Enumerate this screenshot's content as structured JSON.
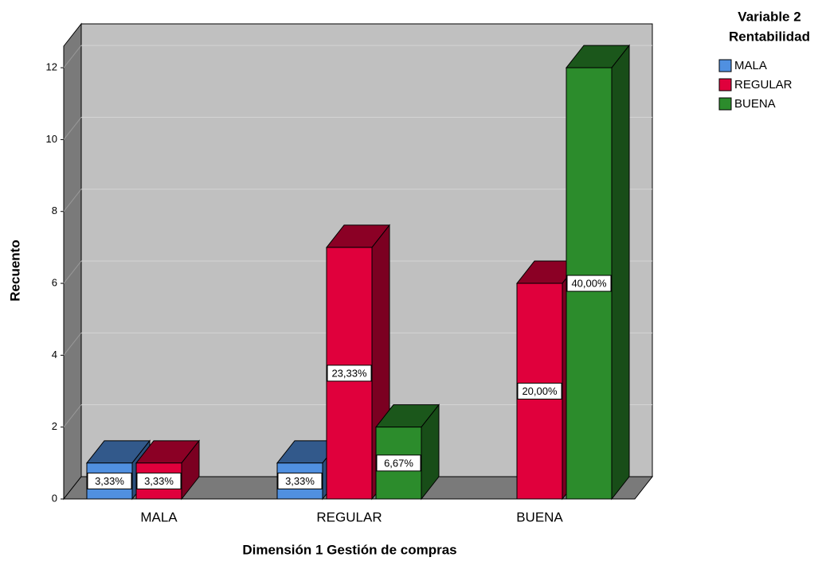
{
  "chart_data": {
    "type": "bar3d",
    "xlabel": "Dimensión 1 Gestión de compras",
    "ylabel": "Recuento",
    "categories": [
      "MALA",
      "REGULAR",
      "BUENA"
    ],
    "legend_title": [
      "Variable 2",
      "Rentabilidad"
    ],
    "legend": "right",
    "grid": true,
    "series": [
      {
        "name": "MALA",
        "color": "#5090e0",
        "values": [
          1,
          1,
          null
        ],
        "value_labels": [
          "3,33%",
          "3,33%",
          null
        ]
      },
      {
        "name": "REGULAR",
        "color": "#e0003c",
        "values": [
          1,
          7,
          6
        ],
        "value_labels": [
          "3,33%",
          "23,33%",
          "20,00%"
        ]
      },
      {
        "name": "BUENA",
        "color": "#2c8c2c",
        "values": [
          null,
          2,
          12
        ],
        "value_labels": [
          null,
          "6,67%",
          "40,00%"
        ]
      }
    ],
    "ylim": [
      0,
      12.6
    ],
    "yticks": [
      0,
      2,
      4,
      6,
      8,
      10,
      12
    ]
  }
}
